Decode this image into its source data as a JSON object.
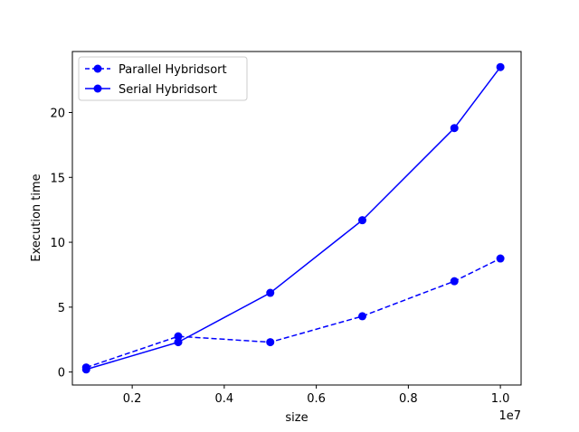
{
  "chart_data": {
    "type": "line",
    "title": "",
    "xlabel": "size",
    "ylabel": "Execution time",
    "x_offset_label": "1e7",
    "x": [
      1000000,
      3000000,
      5000000,
      7000000,
      9000000,
      10000000
    ],
    "xlim": [
      700000,
      10450000
    ],
    "ylim": [
      -1.0,
      24.7
    ],
    "xticks": [
      2000000,
      4000000,
      6000000,
      8000000,
      10000000
    ],
    "xtick_labels": [
      "0.2",
      "0.4",
      "0.6",
      "0.8",
      "1.0"
    ],
    "yticks": [
      0,
      5,
      10,
      15,
      20
    ],
    "ytick_labels": [
      "0",
      "5",
      "10",
      "15",
      "20"
    ],
    "grid": false,
    "legend_position": "top-left",
    "series": [
      {
        "name": "Parallel Hybridsort",
        "values": [
          0.35,
          2.75,
          2.3,
          4.3,
          7.0,
          8.75
        ],
        "color": "#0000ff",
        "line_style": "dashed",
        "marker": "circle"
      },
      {
        "name": "Serial Hybridsort",
        "values": [
          0.2,
          2.3,
          6.1,
          11.7,
          18.8,
          23.5
        ],
        "color": "#0000ff",
        "line_style": "solid",
        "marker": "circle"
      }
    ]
  }
}
